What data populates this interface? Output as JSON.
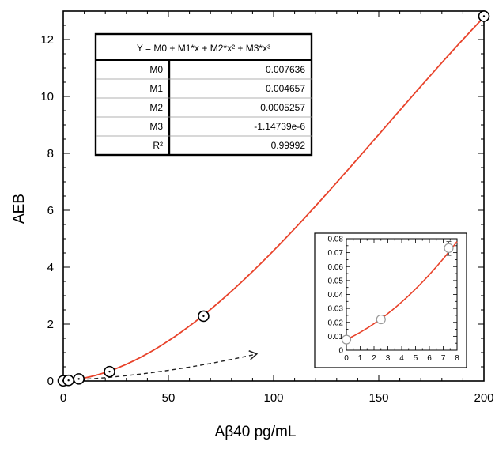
{
  "chart_data": [
    {
      "type": "scatter",
      "title": "",
      "xlabel": "Aβ40 pg/mL",
      "ylabel": "AEB",
      "xlim": [
        0,
        200
      ],
      "ylim": [
        0,
        13
      ],
      "xticks": [
        "0",
        "50",
        "100",
        "150",
        "200"
      ],
      "yticks": [
        "0",
        "2",
        "4",
        "6",
        "8",
        "10",
        "12"
      ],
      "grid": false,
      "points": [
        {
          "x": 0,
          "y": 0.007
        },
        {
          "x": 2.5,
          "y": 0.022
        },
        {
          "x": 7.4,
          "y": 0.073
        },
        {
          "x": 22,
          "y": 0.33
        },
        {
          "x": 66.7,
          "y": 2.28
        },
        {
          "x": 200,
          "y": 12.82
        }
      ],
      "fit": {
        "type": "cubic polynomial",
        "coefficients": {
          "M0": 0.007636,
          "M1": 0.004657,
          "M2": 0.0005257,
          "M3": -1.14739e-06
        },
        "color": "#e8422a"
      },
      "fit_table": {
        "equation": "Y = M0 + M1*x +   M2*x² + M3*x³",
        "rows": [
          {
            "label": "M0",
            "value": "0.007636"
          },
          {
            "label": "M1",
            "value": "0.004657"
          },
          {
            "label": "M2",
            "value": "0.0005257"
          },
          {
            "label": "M3",
            "value": "-1.14739e-6"
          },
          {
            "label": "R²",
            "value": "0.99992"
          }
        ]
      },
      "annotation": "dashed arrow pointing from low-concentration region toward inset"
    },
    {
      "type": "scatter",
      "title": "",
      "xlabel": "",
      "ylabel": "",
      "xlim": [
        0,
        8
      ],
      "ylim": [
        0,
        0.08
      ],
      "xticks": [
        "0",
        "1",
        "2",
        "3",
        "4",
        "5",
        "6",
        "7",
        "8"
      ],
      "yticks": [
        "0",
        "0.01",
        "0.02",
        "0.03",
        "0.04",
        "0.05",
        "0.06",
        "0.07",
        "0.08"
      ],
      "grid": false,
      "points": [
        {
          "x": 0,
          "y": 0.0076
        },
        {
          "x": 2.5,
          "y": 0.0221
        },
        {
          "x": 7.4,
          "y": 0.0733
        }
      ],
      "error_bars": [
        {
          "x": 7.4,
          "low": 0.068,
          "high": 0.078
        }
      ]
    }
  ]
}
